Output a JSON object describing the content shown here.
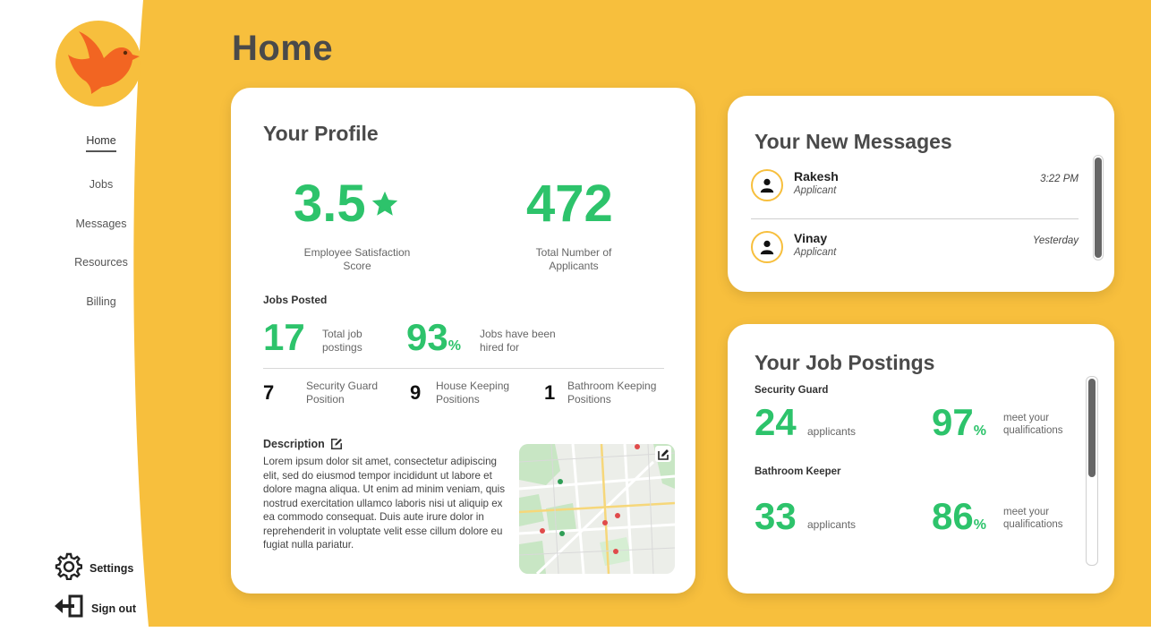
{
  "nav": {
    "items": [
      {
        "label": "Home",
        "active": true
      },
      {
        "label": "Jobs",
        "active": false
      },
      {
        "label": "Messages",
        "active": false
      },
      {
        "label": "Resources",
        "active": false
      },
      {
        "label": "Billing",
        "active": false
      }
    ],
    "settings_label": "Settings",
    "signout_label": "Sign out"
  },
  "page": {
    "title": "Home"
  },
  "profile": {
    "title": "Your Profile",
    "satisfaction_score": "3.5",
    "satisfaction_label": "Employee Satisfaction Score",
    "applicants_total": "472",
    "applicants_label": "Total Number of Applicants",
    "jobs_posted_label": "Jobs Posted",
    "total_postings": "17",
    "total_postings_label": "Total job postings",
    "hired_percent": "93",
    "percent_sign": "%",
    "hired_label": "Jobs have been hired for",
    "positions": [
      {
        "count": "7",
        "label": "Security Guard Position"
      },
      {
        "count": "9",
        "label": "House Keeping Positions"
      },
      {
        "count": "1",
        "label": "Bathroom Keeping Positions"
      }
    ],
    "description_title": "Description",
    "description_text": "Lorem ipsum dolor sit amet, consectetur adipiscing elit, sed do eiusmod tempor incididunt ut labore et dolore magna aliqua. Ut enim ad minim veniam, quis nostrud exercitation ullamco laboris nisi ut aliquip ex ea commodo consequat. Duis aute irure dolor in reprehenderit in voluptate velit esse cillum dolore eu fugiat nulla pariatur."
  },
  "messages": {
    "title": "Your New Messages",
    "items": [
      {
        "name": "Rakesh",
        "role": "Applicant",
        "time": "3:22 PM"
      },
      {
        "name": "Vinay",
        "role": "Applicant",
        "time": "Yesterday"
      }
    ]
  },
  "postings": {
    "title": "Your Job Postings",
    "items": [
      {
        "job": "Security Guard",
        "applicants": "24",
        "applicants_label": "applicants",
        "percent": "97",
        "percent_sign": "%",
        "percent_label": "meet your qualifications"
      },
      {
        "job": "Bathroom Keeper",
        "applicants": "33",
        "applicants_label": "applicants",
        "percent": "86",
        "percent_sign": "%",
        "percent_label": "meet your qualifications"
      }
    ]
  },
  "colors": {
    "background": "#F7BF3D",
    "accent_green": "#2DC36B",
    "logo_bird": "#F26522"
  },
  "icons": [
    "bird-logo-icon",
    "star-icon",
    "edit-icon",
    "map-image",
    "user-icon",
    "gear-icon",
    "sign-out-icon"
  ]
}
